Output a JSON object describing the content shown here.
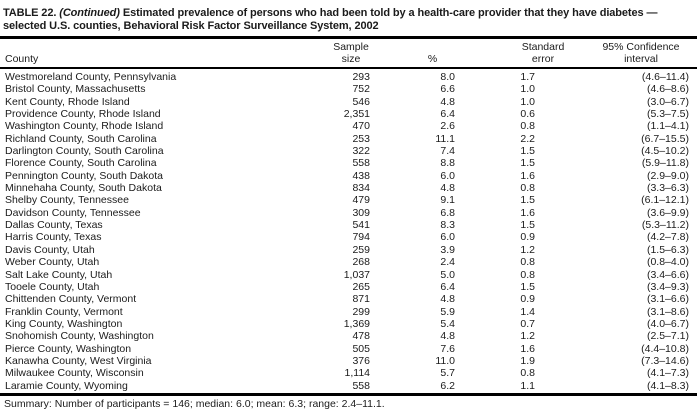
{
  "document": {
    "title": {
      "label": "TABLE 22.",
      "continued": "(Continued)",
      "text": "Estimated prevalence of persons who had been told by a health-care provider that they have diabetes — selected U.S. counties, Behavioral Risk Factor Surveillance System, 2002"
    },
    "table": {
      "headers": {
        "county": "County",
        "sample_size": "Sample\nsize",
        "percent": "%",
        "standard_error": "Standard\nerror",
        "confidence_interval": "95% Confidence\ninterval"
      },
      "rows": [
        [
          "Westmoreland County, Pennsylvania",
          "293",
          "8.0",
          "1.7",
          "(4.6–11.4)"
        ],
        [
          "Bristol County, Massachusetts",
          "752",
          "6.6",
          "1.0",
          "(4.6–8.6)"
        ],
        [
          "Kent County, Rhode Island",
          "546",
          "4.8",
          "1.0",
          "(3.0–6.7)"
        ],
        [
          "Providence County, Rhode Island",
          "2,351",
          "6.4",
          "0.6",
          "(5.3–7.5)"
        ],
        [
          "Washington County, Rhode Island",
          "470",
          "2.6",
          "0.8",
          "(1.1–4.1)"
        ],
        [
          "Richland County, South Carolina",
          "253",
          "11.1",
          "2.2",
          "(6.7–15.5)"
        ],
        [
          "Darlington County, South Carolina",
          "322",
          "7.4",
          "1.5",
          "(4.5–10.2)"
        ],
        [
          "Florence County, South Carolina",
          "558",
          "8.8",
          "1.5",
          "(5.9–11.8)"
        ],
        [
          "Pennington County, South Dakota",
          "438",
          "6.0",
          "1.6",
          "(2.9–9.0)"
        ],
        [
          "Minnehaha County, South Dakota",
          "834",
          "4.8",
          "0.8",
          "(3.3–6.3)"
        ],
        [
          "Shelby County, Tennessee",
          "479",
          "9.1",
          "1.5",
          "(6.1–12.1)"
        ],
        [
          "Davidson County, Tennessee",
          "309",
          "6.8",
          "1.6",
          "(3.6–9.9)"
        ],
        [
          "Dallas County, Texas",
          "541",
          "8.3",
          "1.5",
          "(5.3–11.2)"
        ],
        [
          "Harris County, Texas",
          "794",
          "6.0",
          "0.9",
          "(4.2–7.8)"
        ],
        [
          "Davis County, Utah",
          "259",
          "3.9",
          "1.2",
          "(1.5–6.3)"
        ],
        [
          "Weber County, Utah",
          "268",
          "2.4",
          "0.8",
          "(0.8–4.0)"
        ],
        [
          "Salt Lake County, Utah",
          "1,037",
          "5.0",
          "0.8",
          "(3.4–6.6)"
        ],
        [
          "Tooele County, Utah",
          "265",
          "6.4",
          "1.5",
          "(3.4–9.3)"
        ],
        [
          "Chittenden County, Vermont",
          "871",
          "4.8",
          "0.9",
          "(3.1–6.6)"
        ],
        [
          "Franklin County, Vermont",
          "299",
          "5.9",
          "1.4",
          "(3.1–8.6)"
        ],
        [
          "King County, Washington",
          "1,369",
          "5.4",
          "0.7",
          "(4.0–6.7)"
        ],
        [
          "Snohomish County, Washington",
          "478",
          "4.8",
          "1.2",
          "(2.5–7.1)"
        ],
        [
          "Pierce County, Washington",
          "505",
          "7.6",
          "1.6",
          "(4.4–10.8)"
        ],
        [
          "Kanawha County, West Virginia",
          "376",
          "11.0",
          "1.9",
          "(7.3–14.6)"
        ],
        [
          "Milwaukee County, Wisconsin",
          "1,114",
          "5.7",
          "0.8",
          "(4.1–7.3)"
        ],
        [
          "Laramie County, Wyoming",
          "558",
          "6.2",
          "1.1",
          "(4.1–8.3)"
        ]
      ]
    },
    "summary": "Summary: Number of participants = 146; median: 6.0; mean: 6.3; range: 2.4–11.1."
  }
}
